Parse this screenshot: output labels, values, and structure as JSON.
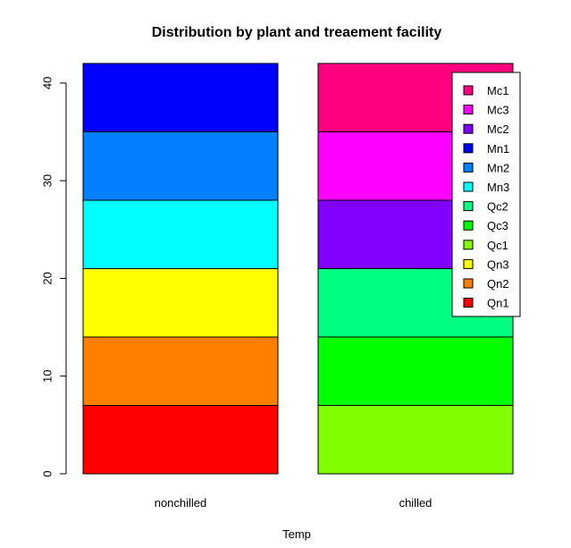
{
  "chart_data": {
    "type": "bar",
    "stacked": true,
    "title": "Distribution by plant and treaement facility",
    "xlabel": "Temp",
    "ylabel": "",
    "ylim": [
      0,
      42
    ],
    "yticks": [
      0,
      10,
      20,
      30,
      40
    ],
    "grid": false,
    "legend_placement": "top-right",
    "categories": [
      "nonchilled",
      "chilled"
    ],
    "series": [
      {
        "name": "Qn1",
        "color": "#ff0000",
        "values": [
          7,
          0
        ]
      },
      {
        "name": "Qn2",
        "color": "#ff8000",
        "values": [
          7,
          0
        ]
      },
      {
        "name": "Qn3",
        "color": "#ffff00",
        "values": [
          7,
          0
        ]
      },
      {
        "name": "Qc1",
        "color": "#80ff00",
        "values": [
          0,
          7
        ]
      },
      {
        "name": "Qc3",
        "color": "#00ff00",
        "values": [
          0,
          7
        ]
      },
      {
        "name": "Qc2",
        "color": "#00ff80",
        "values": [
          0,
          7
        ]
      },
      {
        "name": "Mn3",
        "color": "#00ffff",
        "values": [
          7,
          0
        ]
      },
      {
        "name": "Mn2",
        "color": "#0080ff",
        "values": [
          7,
          0
        ]
      },
      {
        "name": "Mn1",
        "color": "#0000ff",
        "values": [
          7,
          0
        ]
      },
      {
        "name": "Mc2",
        "color": "#8000ff",
        "values": [
          0,
          7
        ]
      },
      {
        "name": "Mc3",
        "color": "#ff00ff",
        "values": [
          0,
          7
        ]
      },
      {
        "name": "Mc1",
        "color": "#ff0080",
        "values": [
          0,
          7
        ]
      }
    ],
    "legend_order": [
      "Mc1",
      "Mc3",
      "Mc2",
      "Mn1",
      "Mn2",
      "Mn3",
      "Qc2",
      "Qc3",
      "Qc1",
      "Qn3",
      "Qn2",
      "Qn1"
    ]
  }
}
